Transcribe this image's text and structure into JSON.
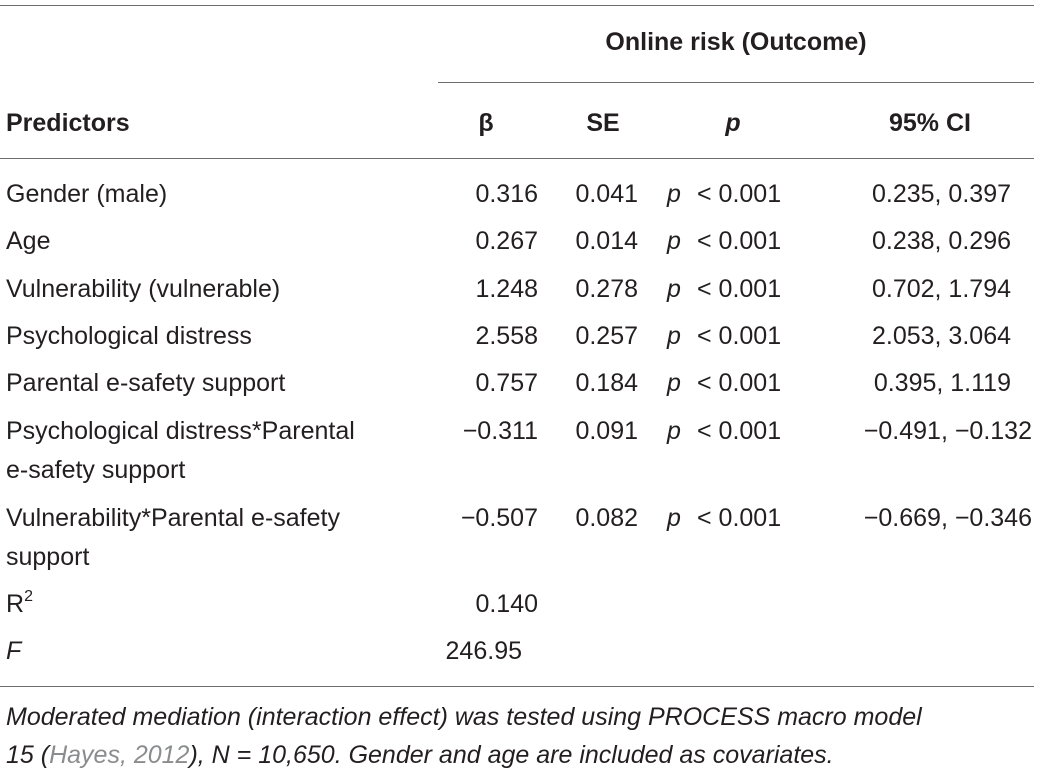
{
  "header": {
    "outcome_label": "Online risk (Outcome)",
    "predictors_label": "Predictors",
    "col_beta": "β",
    "col_se": "SE",
    "col_p": "p",
    "col_ci": "95% CI"
  },
  "rows": [
    {
      "label": "Gender (male)",
      "beta": "0.316",
      "se": "0.041",
      "p_sym": "p",
      "p_val": "< 0.001",
      "ci": "0.235, 0.397"
    },
    {
      "label": "Age",
      "beta": "0.267",
      "se": "0.014",
      "p_sym": "p",
      "p_val": "< 0.001",
      "ci": "0.238, 0.296"
    },
    {
      "label": "Vulnerability (vulnerable)",
      "beta": "1.248",
      "se": "0.278",
      "p_sym": "p",
      "p_val": "< 0.001",
      "ci": "0.702, 1.794"
    },
    {
      "label": "Psychological distress",
      "beta": "2.558",
      "se": "0.257",
      "p_sym": "p",
      "p_val": "< 0.001",
      "ci": "2.053, 3.064"
    },
    {
      "label": "Parental e-safety support",
      "beta": "0.757",
      "se": "0.184",
      "p_sym": "p",
      "p_val": "< 0.001",
      "ci": "0.395, 1.119"
    },
    {
      "label_line1": "Psychological distress*Parental",
      "label_line2": "e-safety support",
      "beta": "−0.311",
      "se": "0.091",
      "p_sym": "p",
      "p_val": "< 0.001",
      "ci": "−0.491, −0.132"
    },
    {
      "label_line1": "Vulnerability*Parental e-safety",
      "label_line2": "support",
      "beta": "−0.507",
      "se": "0.082",
      "p_sym": "p",
      "p_val": "< 0.001",
      "ci": "−0.669, −0.346"
    }
  ],
  "fit": {
    "r2_base": "R",
    "r2_sup": "2",
    "r2_value": "0.140",
    "f_label": "F",
    "f_value": "246.95"
  },
  "note": {
    "part1": "Moderated mediation (interaction effect) was tested using PROCESS macro model",
    "part2_pre": "15 (",
    "ref": "Hayes, 2012",
    "part2_post": "), N = 10,650. Gender and age are included as covariates."
  }
}
